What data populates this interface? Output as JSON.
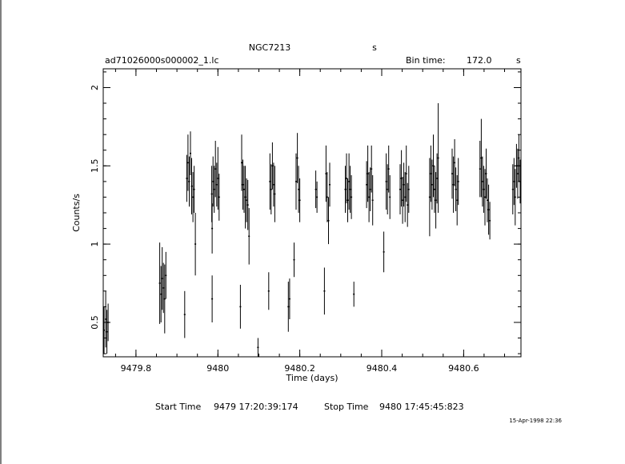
{
  "chart_data": {
    "type": "scatter",
    "title": "NGC7213",
    "title_suffix": "s",
    "file_label": "ad71026000s000002_1.lc",
    "bin_time_label": "Bin time:",
    "bin_time_value": "172.0",
    "bin_time_unit": "s",
    "xlabel": "Time (days)",
    "ylabel": "Counts/s",
    "xlim": [
      9479.72,
      9480.74
    ],
    "ylim": [
      0.28,
      2.12
    ],
    "xticks": [
      "9479.8",
      "9480",
      "9480.2",
      "9480.4",
      "9480.6"
    ],
    "xtick_values": [
      9479.8,
      9480.0,
      9480.2,
      9480.4,
      9480.6
    ],
    "yticks": [
      "0.5",
      "1",
      "1.5",
      "2"
    ],
    "ytick_values": [
      0.5,
      1.0,
      1.5,
      2.0
    ],
    "grid": false,
    "series": [
      {
        "points": [
          [
            9479.722,
            0.45,
            0.15
          ],
          [
            9479.726,
            0.52,
            0.18
          ],
          [
            9479.729,
            0.44,
            0.14
          ],
          [
            9479.732,
            0.5,
            0.12
          ],
          [
            9479.858,
            0.75,
            0.26
          ],
          [
            9479.861,
            0.68,
            0.18
          ],
          [
            9479.864,
            0.78,
            0.2
          ],
          [
            9479.867,
            0.72,
            0.16
          ],
          [
            9479.87,
            0.65,
            0.22
          ],
          [
            9479.873,
            0.8,
            0.15
          ],
          [
            9479.919,
            0.55,
            0.15
          ],
          [
            9479.924,
            1.42,
            0.15
          ],
          [
            9479.927,
            1.52,
            0.18
          ],
          [
            9479.93,
            1.4,
            0.16
          ],
          [
            9479.933,
            1.58,
            0.14
          ],
          [
            9479.936,
            1.37,
            0.18
          ],
          [
            9479.939,
            1.3,
            0.16
          ],
          [
            9479.942,
            1.35,
            0.15
          ],
          [
            9479.945,
            1.0,
            0.2
          ],
          [
            9479.985,
            1.32,
            0.18
          ],
          [
            9479.988,
            1.4,
            0.16
          ],
          [
            9479.991,
            1.35,
            0.15
          ],
          [
            9479.994,
            1.48,
            0.18
          ],
          [
            9479.997,
            1.38,
            0.14
          ],
          [
            9480.0,
            1.42,
            0.2
          ],
          [
            9480.003,
            1.3,
            0.15
          ],
          [
            9479.986,
            1.1,
            0.16
          ],
          [
            9479.986,
            0.65,
            0.15
          ],
          [
            9480.055,
            0.6,
            0.14
          ],
          [
            9480.058,
            1.52,
            0.18
          ],
          [
            9480.061,
            1.38,
            0.16
          ],
          [
            9480.064,
            1.35,
            0.15
          ],
          [
            9480.067,
            1.3,
            0.2
          ],
          [
            9480.07,
            1.28,
            0.14
          ],
          [
            9480.073,
            1.25,
            0.16
          ],
          [
            9480.076,
            1.05,
            0.18
          ],
          [
            9480.098,
            0.34,
            0.06
          ],
          [
            9480.124,
            0.7,
            0.12
          ],
          [
            9480.127,
            1.4,
            0.18
          ],
          [
            9480.13,
            1.35,
            0.16
          ],
          [
            9480.133,
            1.5,
            0.15
          ],
          [
            9480.136,
            1.38,
            0.14
          ],
          [
            9480.139,
            1.32,
            0.18
          ],
          [
            9480.172,
            0.6,
            0.16
          ],
          [
            9480.175,
            0.65,
            0.13
          ],
          [
            9480.186,
            0.9,
            0.11
          ],
          [
            9480.191,
            1.4,
            0.18
          ],
          [
            9480.194,
            1.55,
            0.16
          ],
          [
            9480.197,
            1.35,
            0.15
          ],
          [
            9480.2,
            1.28,
            0.14
          ],
          [
            9480.239,
            1.35,
            0.12
          ],
          [
            9480.242,
            1.3,
            0.1
          ],
          [
            9480.26,
            0.7,
            0.15
          ],
          [
            9480.264,
            1.45,
            0.18
          ],
          [
            9480.267,
            1.3,
            0.16
          ],
          [
            9480.27,
            1.15,
            0.15
          ],
          [
            9480.273,
            1.38,
            0.14
          ],
          [
            9480.311,
            1.35,
            0.15
          ],
          [
            9480.314,
            1.42,
            0.16
          ],
          [
            9480.317,
            1.28,
            0.14
          ],
          [
            9480.32,
            1.4,
            0.18
          ],
          [
            9480.323,
            1.35,
            0.15
          ],
          [
            9480.326,
            1.3,
            0.14
          ],
          [
            9480.332,
            0.68,
            0.08
          ],
          [
            9480.363,
            1.38,
            0.15
          ],
          [
            9480.366,
            1.45,
            0.18
          ],
          [
            9480.369,
            1.3,
            0.16
          ],
          [
            9480.372,
            1.35,
            0.14
          ],
          [
            9480.375,
            1.48,
            0.15
          ],
          [
            9480.378,
            1.28,
            0.16
          ],
          [
            9480.405,
            0.95,
            0.13
          ],
          [
            9480.411,
            1.4,
            0.18
          ],
          [
            9480.414,
            1.35,
            0.16
          ],
          [
            9480.417,
            1.48,
            0.15
          ],
          [
            9480.42,
            1.3,
            0.14
          ],
          [
            9480.445,
            1.35,
            0.16
          ],
          [
            9480.448,
            1.42,
            0.18
          ],
          [
            9480.451,
            1.28,
            0.15
          ],
          [
            9480.454,
            1.38,
            0.14
          ],
          [
            9480.457,
            1.3,
            0.16
          ],
          [
            9480.46,
            1.45,
            0.18
          ],
          [
            9480.463,
            1.25,
            0.14
          ],
          [
            9480.466,
            1.35,
            0.15
          ],
          [
            9480.517,
            1.3,
            0.25
          ],
          [
            9480.52,
            1.45,
            0.18
          ],
          [
            9480.523,
            1.38,
            0.16
          ],
          [
            9480.526,
            1.5,
            0.2
          ],
          [
            9480.529,
            1.35,
            0.15
          ],
          [
            9480.532,
            1.28,
            0.18
          ],
          [
            9480.535,
            1.42,
            0.16
          ],
          [
            9480.538,
            1.55,
            0.35
          ],
          [
            9480.572,
            1.45,
            0.16
          ],
          [
            9480.575,
            1.38,
            0.18
          ],
          [
            9480.578,
            1.52,
            0.15
          ],
          [
            9480.581,
            1.35,
            0.14
          ],
          [
            9480.584,
            1.28,
            0.16
          ],
          [
            9480.587,
            1.4,
            0.15
          ],
          [
            9480.64,
            1.48,
            0.18
          ],
          [
            9480.643,
            1.55,
            0.25
          ],
          [
            9480.646,
            1.4,
            0.16
          ],
          [
            9480.649,
            1.35,
            0.15
          ],
          [
            9480.652,
            1.3,
            0.18
          ],
          [
            9480.655,
            1.45,
            0.16
          ],
          [
            9480.658,
            1.28,
            0.14
          ],
          [
            9480.661,
            1.22,
            0.16
          ],
          [
            9480.664,
            1.15,
            0.12
          ],
          [
            9480.72,
            1.35,
            0.16
          ],
          [
            9480.723,
            1.4,
            0.15
          ],
          [
            9480.726,
            1.3,
            0.18
          ],
          [
            9480.729,
            1.5,
            0.14
          ],
          [
            9480.732,
            1.45,
            0.16
          ],
          [
            9480.735,
            1.55,
            0.15
          ],
          [
            9480.738,
            1.4,
            0.14
          ]
        ]
      }
    ]
  },
  "footer": {
    "start_label": "Start Time",
    "start_value": "9479 17:20:39:174",
    "stop_label": "Stop Time",
    "stop_value": "9480 17:45:45:823",
    "date_stamp": "15-Apr-1998 22:36"
  }
}
